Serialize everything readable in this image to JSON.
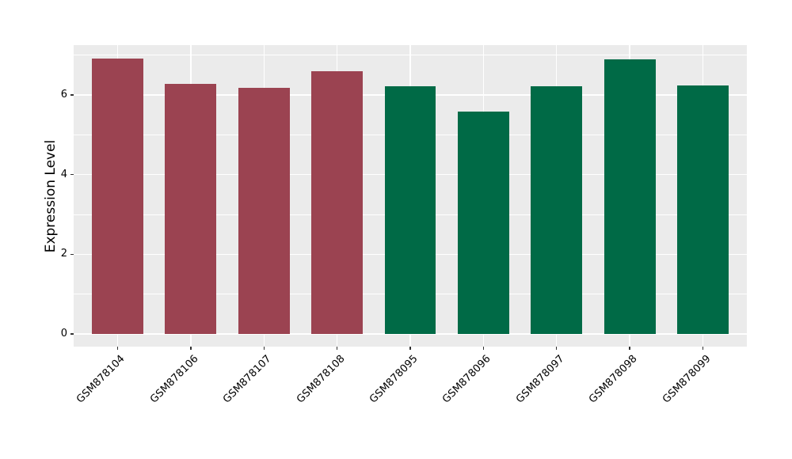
{
  "chart_data": {
    "type": "bar",
    "title": "",
    "xlabel": "",
    "ylabel": "Expression Level",
    "categories": [
      "GSM878104",
      "GSM878106",
      "GSM878107",
      "GSM878108",
      "GSM878095",
      "GSM878096",
      "GSM878097",
      "GSM878098",
      "GSM878099"
    ],
    "series": [
      {
        "name": "Expression Level",
        "values": [
          6.91,
          6.28,
          6.18,
          6.6,
          6.21,
          5.59,
          6.22,
          6.89,
          6.24
        ]
      }
    ],
    "bar_colors": [
      "#9B4351",
      "#9B4351",
      "#9B4351",
      "#9B4351",
      "#006A46",
      "#006A46",
      "#006A46",
      "#006A46",
      "#006A46"
    ],
    "group_colors": {
      "maroon_group": "#9B4351",
      "green_group": "#006A46"
    },
    "ylim": [
      -0.32,
      7.25
    ],
    "yticks_major": [
      0,
      2,
      4,
      6
    ],
    "yticks_minor": [
      1,
      3,
      5,
      7
    ],
    "grid": "on",
    "legend_position": "none",
    "panel_bg": "#EBEBEB",
    "grid_color": "#FFFFFF",
    "tick_color": "#333333",
    "text_color": "#000000"
  }
}
